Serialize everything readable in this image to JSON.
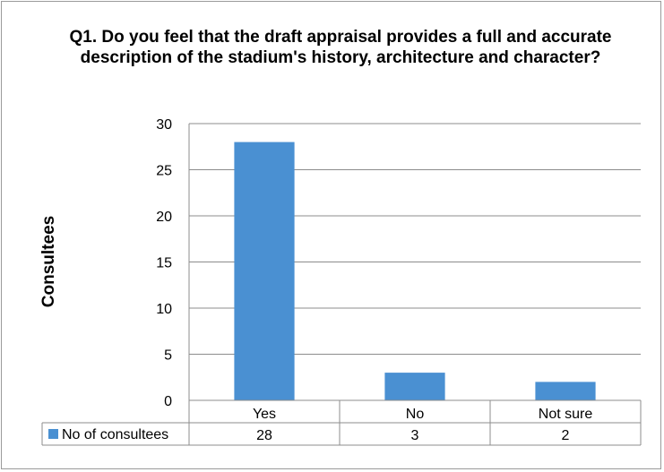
{
  "chart_data": {
    "type": "bar",
    "title": "Q1. Do you feel that the draft appraisal provides a full and accurate description of the stadium's history, architecture and character?",
    "ylabel": "Consultees",
    "ylim": [
      0,
      30
    ],
    "yticks": [
      0,
      5,
      10,
      15,
      20,
      25,
      30
    ],
    "grid": true,
    "categories": [
      "Yes",
      "No",
      "Not sure"
    ],
    "series": [
      {
        "name": "No of consultees",
        "values": [
          28,
          3,
          2
        ],
        "color": "#4a90d2"
      }
    ],
    "data_table": true
  }
}
